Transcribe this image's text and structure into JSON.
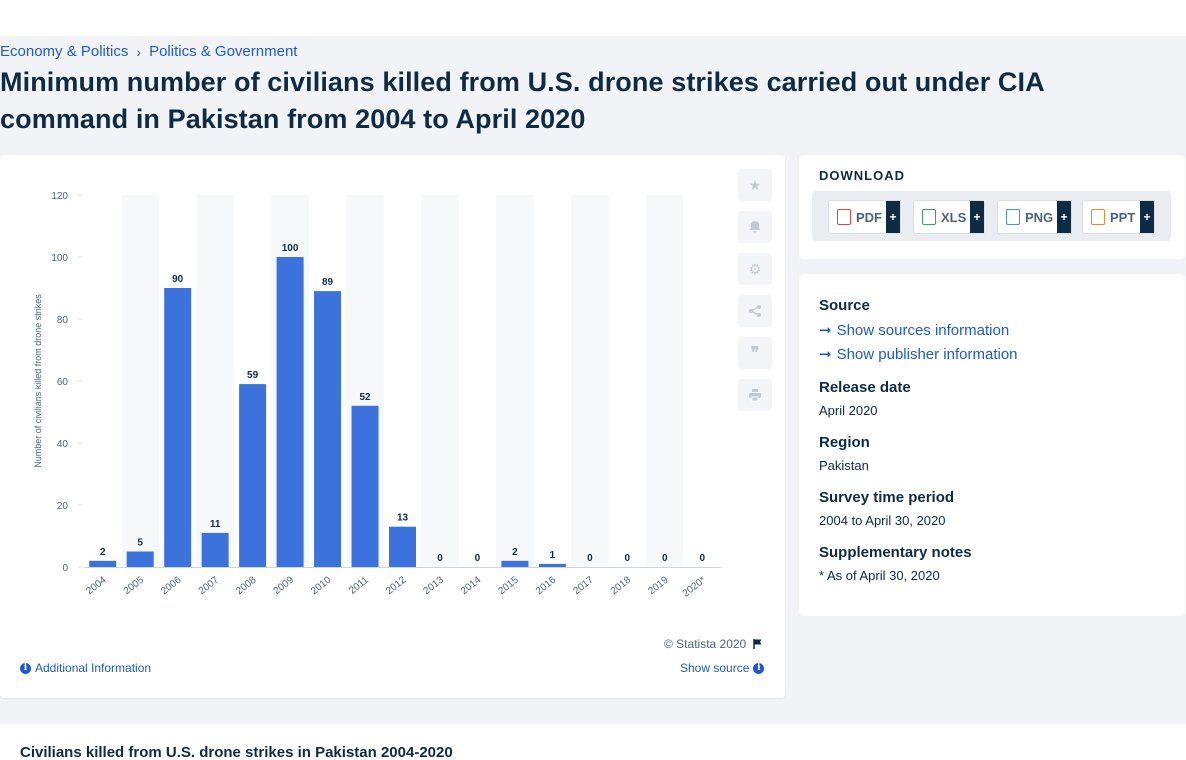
{
  "breadcrumb": {
    "item1": "Economy & Politics",
    "sep": "›",
    "item2": "Politics & Government"
  },
  "page_title": "Minimum number of civilians killed from U.S. drone strikes carried out under CIA command in Pakistan from 2004 to April 2020",
  "chart_data": {
    "type": "bar",
    "categories": [
      "2004",
      "2005",
      "2006",
      "2007",
      "2008",
      "2009",
      "2010",
      "2011",
      "2012",
      "2013",
      "2014",
      "2015",
      "2016",
      "2017",
      "2018",
      "2019",
      "2020*"
    ],
    "values": [
      2,
      5,
      90,
      11,
      59,
      100,
      89,
      52,
      13,
      0,
      0,
      2,
      1,
      0,
      0,
      0,
      0
    ],
    "ylabel": "Number of civilians killed from drone strikes",
    "xlabel": "",
    "ylim": [
      0,
      120
    ],
    "yticks": [
      0,
      20,
      40,
      60,
      80,
      100,
      120
    ],
    "grid": false,
    "bar_color": "#3b72dc",
    "band_color": "#f7f8fa"
  },
  "chart_footer": {
    "copyright": "© Statista 2020",
    "additional_info": "Additional Information",
    "show_source": "Show source"
  },
  "tools": [
    "star-icon",
    "bell-icon",
    "gear-icon",
    "share-icon",
    "quote-icon",
    "print-icon"
  ],
  "download": {
    "title": "DOWNLOAD",
    "buttons": [
      {
        "label": "PDF",
        "color": "#e0443e"
      },
      {
        "label": "XLS",
        "color": "#3aa757"
      },
      {
        "label": "PNG",
        "color": "#4a90d9"
      },
      {
        "label": "PPT",
        "color": "#f08a24"
      }
    ],
    "plus": "+"
  },
  "source": {
    "heading": "Source",
    "sources_link": "Show sources information",
    "publisher_link": "Show publisher information",
    "release_heading": "Release date",
    "release_value": "April 2020",
    "region_heading": "Region",
    "region_value": "Pakistan",
    "period_heading": "Survey time period",
    "period_value": "2004 to April 30, 2020",
    "notes_heading": "Supplementary notes",
    "notes_value": "* As of April 30, 2020"
  },
  "bottom_title": "Civilians killed from U.S. drone strikes in Pakistan 2004-2020"
}
